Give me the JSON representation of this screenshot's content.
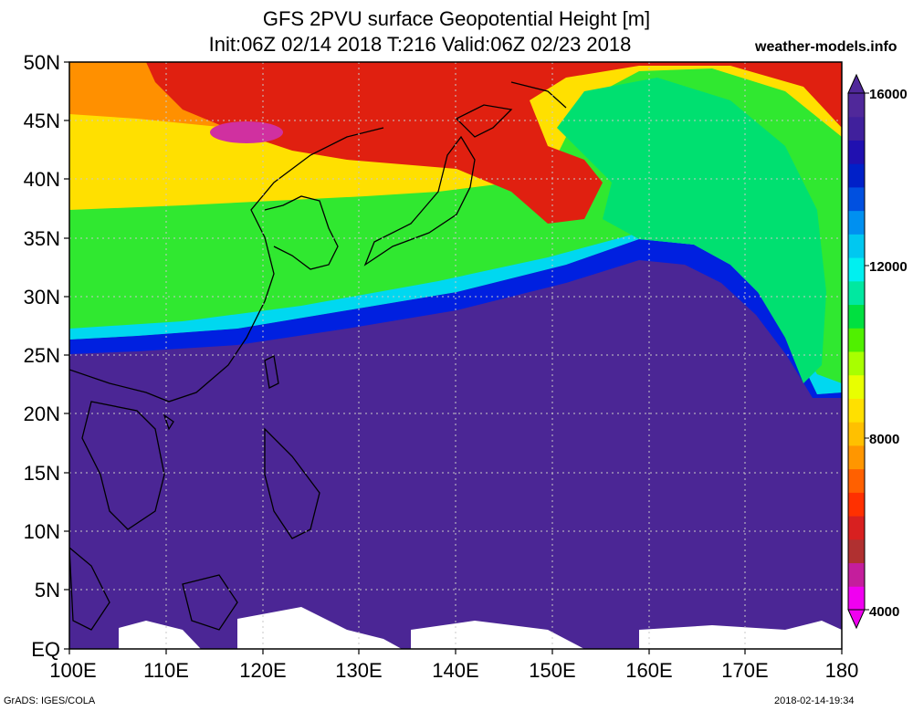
{
  "title_line1": "GFS 2PVU surface Geopotential Height [m]",
  "title_line2": "Init:06Z 02/14 2018 T:216 Valid:06Z 02/23 2018",
  "site": "weather-models.info",
  "footer_left": "GrADS: IGES/COLA",
  "footer_right": "2018-02-14-19:34",
  "map": {
    "lat_labels": [
      "50N",
      "45N",
      "40N",
      "35N",
      "30N",
      "25N",
      "20N",
      "15N",
      "10N",
      "5N",
      "EQ"
    ],
    "lon_labels": [
      "100E",
      "110E",
      "120E",
      "130E",
      "140E",
      "150E",
      "160E",
      "170E",
      "180"
    ]
  },
  "colorbar": {
    "labels": [
      "16000",
      "12000",
      "8000",
      "4000"
    ],
    "colors": [
      "#f000f0",
      "#c41e9c",
      "#b03030",
      "#d82020",
      "#ff3000",
      "#ff6000",
      "#ff9600",
      "#ffc000",
      "#ffe000",
      "#e8ff00",
      "#a8ff00",
      "#50f000",
      "#00e040",
      "#00e8a0",
      "#00f0f0",
      "#00c8f0",
      "#0090f0",
      "#0050e0",
      "#0020c8",
      "#2010b0",
      "#40209c",
      "#50289a"
    ]
  }
}
